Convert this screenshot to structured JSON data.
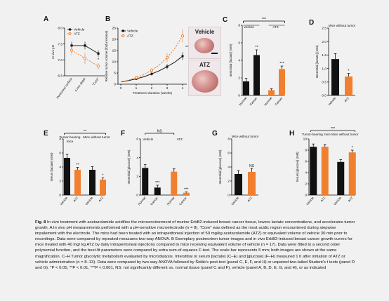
{
  "panels": {
    "A": {
      "letter": "A",
      "ylabel": "In vivo pH",
      "yticks": [
        "6.5",
        "7.0",
        "7.5",
        "8.0"
      ],
      "legend": [
        "Vehicle",
        "ATZ"
      ],
      "xlabels": [
        "Peritoneal surface",
        "4 mm depth",
        "\"Core\""
      ],
      "star": "*"
    },
    "B": {
      "letter": "B",
      "ylabel": "Relative tumor volume (fold increase)",
      "xlabel": "Treatment duration (weeks)",
      "yticks": [
        "0",
        "5",
        "10",
        "15",
        "20",
        "25"
      ],
      "xticks": [
        "0",
        "1",
        "2",
        "3",
        "4"
      ],
      "legend": [
        "Vehicle",
        "ATZ"
      ],
      "star": "***",
      "photo_labels": [
        "Vehicle",
        "ATZ"
      ]
    },
    "C": {
      "letter": "C",
      "ylabel": "Interstitial [lactate] (mM)",
      "yticks": [
        "0",
        "2",
        "4",
        "6",
        "8"
      ],
      "group_labels": [
        "Vehicle",
        "ATZ"
      ],
      "xlabels": [
        "Normal",
        "Cancer",
        "Normal",
        "Cancer"
      ],
      "bracket_star": "***",
      "stars": [
        "**",
        "***"
      ]
    },
    "D": {
      "letter": "D",
      "title": "Mice without tumor",
      "ylabel": "Interstitial [lactate] (mM)",
      "yticks": [
        "0.0",
        "0.5",
        "1.0",
        "1.5",
        "2.0",
        "2.5"
      ],
      "xlabels": [
        "Vehicle",
        "ATZ"
      ],
      "star": "*"
    },
    "E": {
      "letter": "E",
      "ylabel": "Serum [lactate] (mM)",
      "yticks": [
        "0",
        "2",
        "4",
        "6",
        "8"
      ],
      "group_labels": [
        "Tumor-bearing mice",
        "Mice without tumor"
      ],
      "xlabels": [
        "Vehicle",
        "ATZ",
        "Vehicle",
        "ATZ"
      ],
      "bracket_star": "**",
      "stars": [
        "**",
        "*"
      ]
    },
    "F": {
      "letter": "F",
      "ylabel": "Interstitial [glucose] (mM)",
      "yticks": [
        "0",
        "2",
        "4",
        "6"
      ],
      "group_labels": [
        "Vehicle",
        "ATZ"
      ],
      "xlabels": [
        "Normal",
        "Cancer",
        "Normal",
        "Cancer"
      ],
      "bracket_star": "NS",
      "stars": [
        "***",
        "***"
      ]
    },
    "G": {
      "letter": "G",
      "title": "Mice without tumor",
      "ylabel": "Interstitial [glucose] (mM)",
      "yticks": [
        "0",
        "2",
        "4",
        "6",
        "8"
      ],
      "xlabels": [
        "Vehicle",
        "ATZ"
      ],
      "star": "NS"
    },
    "H": {
      "letter": "H",
      "ylabel": "Serum [glucose] (mM)",
      "yticks": [
        "0",
        "2",
        "4",
        "6",
        "8",
        "10"
      ],
      "group_labels": [
        "Tumor-bearing mice",
        "Mice without tumor"
      ],
      "xlabels": [
        "Vehicle",
        "ATZ",
        "Vehicle",
        "ATZ"
      ],
      "bracket_star": "***",
      "stars": [
        "*"
      ]
    }
  },
  "chart_data": [
    {
      "panel": "A",
      "type": "line",
      "categories": [
        "Peritoneal surface",
        "4 mm depth",
        "\"Core\""
      ],
      "series": [
        {
          "name": "Vehicle",
          "values": [
            7.45,
            7.45,
            7.2
          ],
          "errors": [
            0.12,
            0.12,
            0.1
          ]
        },
        {
          "name": "ATZ",
          "values": [
            7.3,
            7.05,
            6.8
          ],
          "errors": [
            0.15,
            0.18,
            0.1
          ]
        }
      ],
      "ylim": [
        6.5,
        8.0
      ],
      "ylabel": "In vivo pH",
      "color_vehicle": "#111111",
      "color_atz": "#f08030"
    },
    {
      "panel": "B",
      "type": "line",
      "x": [
        0,
        0.5,
        1,
        1.5,
        2,
        2.5,
        3,
        3.5,
        4
      ],
      "series": [
        {
          "name": "Vehicle",
          "values": [
            1,
            1.6,
            2.4,
            3.3,
            4.6,
            6,
            7.8,
            9.8,
            12.5
          ],
          "errors": [
            0,
            0.3,
            0.5,
            0.6,
            0.8,
            1,
            1.2,
            1.5,
            1.8
          ]
        },
        {
          "name": "ATZ",
          "values": [
            1,
            1.8,
            2.9,
            4.3,
            6.2,
            8.6,
            11.8,
            16,
            21.5
          ],
          "errors": [
            0,
            0.4,
            0.6,
            0.8,
            1.1,
            1.5,
            2,
            2.4,
            3
          ]
        }
      ],
      "ylim": [
        0,
        25
      ],
      "xlim": [
        0,
        4
      ],
      "xlabel": "Treatment duration (weeks)",
      "ylabel": "Relative tumor volume (fold increase)"
    },
    {
      "panel": "C",
      "type": "bar",
      "categories": [
        "Normal",
        "Cancer",
        "Normal",
        "Cancer"
      ],
      "values": [
        1.6,
        4.6,
        0.6,
        3.0
      ],
      "errors": [
        0.35,
        0.6,
        0.15,
        0.35
      ],
      "colors": [
        "#111111",
        "#111111",
        "#f08030",
        "#f08030"
      ],
      "ylim": [
        0,
        8
      ],
      "ylabel": "Interstitial [lactate] (mM)"
    },
    {
      "panel": "D",
      "type": "bar",
      "categories": [
        "Vehicle",
        "ATZ"
      ],
      "values": [
        1.35,
        0.7
      ],
      "errors": [
        0.2,
        0.12
      ],
      "colors": [
        "#111111",
        "#f08030"
      ],
      "ylim": [
        0,
        2.5
      ],
      "ylabel": "Interstitial [lactate] (mM)"
    },
    {
      "panel": "E",
      "type": "bar",
      "categories": [
        "Vehicle",
        "ATZ",
        "Vehicle",
        "ATZ"
      ],
      "values": [
        5.3,
        3.6,
        3.6,
        2.2
      ],
      "errors": [
        0.5,
        0.35,
        0.45,
        0.25
      ],
      "colors": [
        "#111111",
        "#f08030",
        "#111111",
        "#f08030"
      ],
      "ylim": [
        0,
        8
      ],
      "ylabel": "Serum [lactate] (mM)"
    },
    {
      "panel": "F",
      "type": "bar",
      "categories": [
        "Normal",
        "Cancer",
        "Normal",
        "Cancer"
      ],
      "values": [
        2.9,
        0.8,
        2.5,
        0.25
      ],
      "errors": [
        0.35,
        0.25,
        0.3,
        0.08
      ],
      "colors": [
        "#111111",
        "#111111",
        "#f08030",
        "#f08030"
      ],
      "ylim": [
        0,
        6
      ],
      "ylabel": "Interstitial [glucose] (mM)"
    },
    {
      "panel": "G",
      "type": "bar",
      "categories": [
        "Vehicle",
        "ATZ"
      ],
      "values": [
        3.0,
        3.3
      ],
      "errors": [
        0.5,
        0.5
      ],
      "colors": [
        "#111111",
        "#f08030"
      ],
      "ylim": [
        0,
        8
      ],
      "ylabel": "Interstitial [glucose] (mM)"
    },
    {
      "panel": "H",
      "type": "bar",
      "categories": [
        "Vehicle",
        "ATZ",
        "Vehicle",
        "ATZ"
      ],
      "values": [
        8.6,
        8.6,
        5.9,
        7.6
      ],
      "errors": [
        0.5,
        0.4,
        0.4,
        0.4
      ],
      "colors": [
        "#111111",
        "#f08030",
        "#111111",
        "#f08030"
      ],
      "ylim": [
        0,
        10
      ],
      "ylabel": "Serum [glucose] (mM)"
    }
  ],
  "caption": {
    "fig": "Fig. 8",
    "lines": [
      "In vivo treatment with acetazolamide acidifies the microenvironment of murine ErbB2-induced breast cancer tissue, lowers lactate",
      "concentrations, and accelerates tumor growth. A In vivo pH measurements performed with a pH-sensitive microelectrode (n = 8). \"Core\" was",
      "defined as the most acidic region encountered during stepwise impalement with the electrode. The mice had been treated with an intraperitoneal",
      "injection of 50 mg/kg acetazolamide (ATZ) or equivalent volume of vehicle 30 min prior to recordings. Data were compared by repeated-measures",
      "two-way ANOVA. B Exemplary postmortem tumor images and in vivo ErbB2-induced breast cancer growth curves for mice treated with 40 mg/",
      "kg ATZ by daily intraperitoneal injections compared to mice receiving equivalent volume of vehicle (n = 17). Data were fitted to a second order",
      "polynomial function, and the best-fit parameters were compared by extra sum-of-squares F-test. The scale bar represents 5 mm; both images are",
      "shown at the same magnification. C–H Tumor glycolytic metabolism evaluated by microdialysis. Interstitial or serum [lactate] (C–E) and [glucose]",
      "(F–H) measured 1 h after initiation of ATZ or vehicle administration (n = 8–13). Data were compared by two-way ANOVA followed by Šidák's",
      "post-test (panel C, E, F, and H) or unpaired two-tailed Student's t tests (panel D and G). *P < 0.05, **P < 0.01, ***P < 0.001, NS: not significantly",
      "different vs. normal tissue (panel C and F), vehicle (panel A, B, D, E, G, and H), or as indicated"
    ]
  }
}
